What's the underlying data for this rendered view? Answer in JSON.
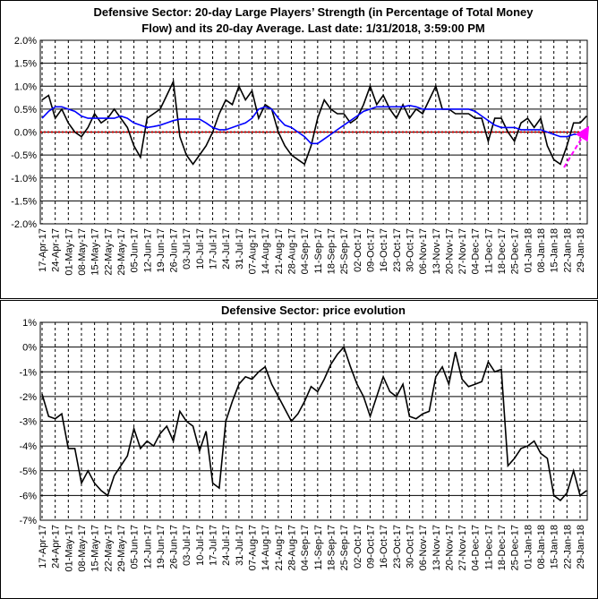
{
  "chart_data": [
    {
      "type": "line",
      "title": [
        "Defensive Sector: 20-day Large Players’ Strength (in Percentage of Total Money",
        "Flow) and its 20-day Average. Last date: 1/31/2018, 3:59:00 PM"
      ],
      "categories": [
        "17-Apr-17",
        null,
        "24-Apr-17",
        null,
        "01-May-17",
        null,
        "08-May-17",
        null,
        "15-May-17",
        null,
        "22-May-17",
        null,
        "29-May-17",
        null,
        "05-Jun-17",
        null,
        "12-Jun-17",
        null,
        "19-Jun-17",
        null,
        "26-Jun-17",
        null,
        "03-Jul-17",
        null,
        "10-Jul-17",
        null,
        "17-Jul-17",
        null,
        "24-Jul-17",
        null,
        "31-Jul-17",
        null,
        "07-Aug-17",
        null,
        "14-Aug-17",
        null,
        "21-Aug-17",
        null,
        "28-Aug-17",
        null,
        "04-Sep-17",
        null,
        "11-Sep-17",
        null,
        "18-Sep-17",
        null,
        "25-Sep-17",
        null,
        "02-Oct-17",
        null,
        "09-Oct-17",
        null,
        "16-Oct-17",
        null,
        "23-Oct-17",
        null,
        "30-Oct-17",
        null,
        "06-Nov-17",
        null,
        "13-Nov-17",
        null,
        "20-Nov-17",
        null,
        "27-Nov-17",
        null,
        "04-Dec-17",
        null,
        "11-Dec-17",
        null,
        "18-Dec-17",
        null,
        "25-Dec-17",
        null,
        "01-Jan-18",
        null,
        "08-Jan-18",
        null,
        "15-Jan-18",
        null,
        "22-Jan-18",
        null,
        "29-Jan-18",
        null
      ],
      "series": [
        {
          "color": "#000000",
          "values": [
            0.7,
            0.8,
            0.3,
            0.5,
            0.2,
            0,
            -0.1,
            0.1,
            0.4,
            0.2,
            0.3,
            0.5,
            0.3,
            0.1,
            -0.3,
            -0.55,
            0.3,
            0.4,
            0.5,
            0.8,
            1.1,
            -0.1,
            -0.5,
            -0.7,
            -0.5,
            -0.3,
            0,
            0.4,
            0.7,
            0.6,
            1.0,
            0.7,
            0.9,
            0.3,
            0.6,
            0.5,
            0,
            -0.3,
            -0.5,
            -0.6,
            -0.7,
            -0.3,
            0.3,
            0.7,
            0.5,
            0.4,
            0.4,
            0.2,
            0.3,
            0.6,
            1.0,
            0.6,
            0.8,
            0.5,
            0.3,
            0.6,
            0.3,
            0.5,
            0.4,
            0.7,
            1.0,
            0.5,
            0.5,
            0.4,
            0.4,
            0.4,
            0.3,
            0.3,
            -0.2,
            0.3,
            0.3,
            0,
            -0.2,
            0.2,
            0.3,
            0.1,
            0.3,
            -0.3,
            -0.6,
            -0.7,
            -0.3,
            0.2,
            0.2,
            0.35
          ]
        },
        {
          "color": "#0000ff",
          "values": [
            0.3,
            0.45,
            0.55,
            0.55,
            0.5,
            0.45,
            0.35,
            0.3,
            0.3,
            0.3,
            0.3,
            0.3,
            0.35,
            0.3,
            0.2,
            0.15,
            0.1,
            0.12,
            0.15,
            0.2,
            0.25,
            0.28,
            0.28,
            0.28,
            0.28,
            0.2,
            0.1,
            0.05,
            0.05,
            0.1,
            0.15,
            0.2,
            0.3,
            0.5,
            0.55,
            0.5,
            0.3,
            0.15,
            0.1,
            0,
            -0.1,
            -0.25,
            -0.25,
            -0.15,
            -0.05,
            0.05,
            0.15,
            0.25,
            0.35,
            0.45,
            0.5,
            0.55,
            0.55,
            0.55,
            0.55,
            0.55,
            0.58,
            0.55,
            0.5,
            0.5,
            0.5,
            0.5,
            0.5,
            0.5,
            0.5,
            0.5,
            0.45,
            0.35,
            0.25,
            0.15,
            0.1,
            0.1,
            0.1,
            0.05,
            0.05,
            0.05,
            0.05,
            0,
            -0.05,
            -0.1,
            -0.1,
            -0.05,
            -0.05,
            0
          ]
        }
      ],
      "reference_line": {
        "value": 0,
        "color": "#cc0000"
      },
      "ylim": [
        -2,
        2
      ],
      "yticks": [
        {
          "value": 2,
          "label": "2.0%"
        },
        {
          "value": 1.5,
          "label": "1.5%"
        },
        {
          "value": 1,
          "label": "1.0%"
        },
        {
          "value": 0.5,
          "label": "0.5%"
        },
        {
          "value": 0,
          "label": "0.0%"
        },
        {
          "value": -0.5,
          "label": "-0.5%"
        },
        {
          "value": -1,
          "label": "-1.0%"
        },
        {
          "value": -1.5,
          "label": "-1.5%"
        },
        {
          "value": -2,
          "label": "-2.0%"
        }
      ],
      "grid": true
    },
    {
      "type": "line",
      "title": [
        "Defensive Sector: price evolution"
      ],
      "categories": [
        "17-Apr-17",
        null,
        "24-Apr-17",
        null,
        "01-May-17",
        null,
        "08-May-17",
        null,
        "15-May-17",
        null,
        "22-May-17",
        null,
        "29-May-17",
        null,
        "05-Jun-17",
        null,
        "12-Jun-17",
        null,
        "19-Jun-17",
        null,
        "26-Jun-17",
        null,
        "03-Jul-17",
        null,
        "10-Jul-17",
        null,
        "17-Jul-17",
        null,
        "24-Jul-17",
        null,
        "31-Jul-17",
        null,
        "07-Aug-17",
        null,
        "14-Aug-17",
        null,
        "21-Aug-17",
        null,
        "28-Aug-17",
        null,
        "04-Sep-17",
        null,
        "11-Sep-17",
        null,
        "18-Sep-17",
        null,
        "25-Sep-17",
        null,
        "02-Oct-17",
        null,
        "09-Oct-17",
        null,
        "16-Oct-17",
        null,
        "23-Oct-17",
        null,
        "30-Oct-17",
        null,
        "06-Nov-17",
        null,
        "13-Nov-17",
        null,
        "20-Nov-17",
        null,
        "27-Nov-17",
        null,
        "04-Dec-17",
        null,
        "11-Dec-17",
        null,
        "18-Dec-17",
        null,
        "25-Dec-17",
        null,
        "01-Jan-18",
        null,
        "08-Jan-18",
        null,
        "15-Jan-18",
        null,
        "22-Jan-18",
        null,
        "29-Jan-18",
        null
      ],
      "series": [
        {
          "color": "#000000",
          "values": [
            -1.9,
            -2.8,
            -2.9,
            -2.7,
            -4.1,
            -4.1,
            -5.5,
            -5.0,
            -5.5,
            -5.8,
            -6.0,
            -5.2,
            -4.8,
            -4.4,
            -3.3,
            -4.1,
            -3.8,
            -4.0,
            -3.5,
            -3.2,
            -3.8,
            -2.6,
            -3.0,
            -3.2,
            -4.2,
            -3.4,
            -5.5,
            -5.7,
            -3.0,
            -2.2,
            -1.5,
            -1.2,
            -1.3,
            -1.0,
            -0.8,
            -1.5,
            -2.0,
            -2.5,
            -3.0,
            -2.7,
            -2.2,
            -1.6,
            -1.8,
            -1.3,
            -0.7,
            -0.3,
            0,
            -0.8,
            -1.5,
            -2.0,
            -2.8,
            -2.0,
            -1.2,
            -1.8,
            -2.0,
            -1.5,
            -2.8,
            -2.9,
            -2.7,
            -2.6,
            -1.2,
            -0.8,
            -1.5,
            -0.2,
            -1.3,
            -1.6,
            -1.5,
            -1.4,
            -0.6,
            -1.0,
            -0.9,
            -4.8,
            -4.5,
            -4.1,
            -4.0,
            -3.8,
            -4.3,
            -4.5,
            -6.0,
            -6.2,
            -5.9,
            -5.0,
            -6.0,
            -5.8
          ]
        }
      ],
      "ylim": [
        -7,
        1
      ],
      "yticks": [
        {
          "value": 1,
          "label": "1%"
        },
        {
          "value": 0,
          "label": "0%"
        },
        {
          "value": -1,
          "label": "-1%"
        },
        {
          "value": -2,
          "label": "-2%"
        },
        {
          "value": -3,
          "label": "-3%"
        },
        {
          "value": -4,
          "label": "-4%"
        },
        {
          "value": -5,
          "label": "-5%"
        },
        {
          "value": -6,
          "label": "-6%"
        },
        {
          "value": -7,
          "label": "-7%"
        }
      ],
      "grid": true
    }
  ]
}
